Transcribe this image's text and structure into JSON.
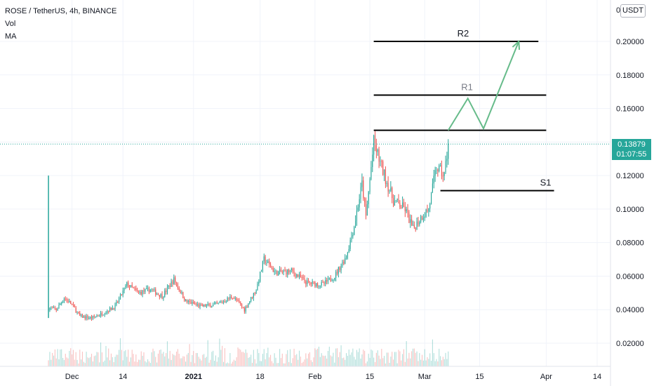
{
  "legend": {
    "symbol": "ROSE / TetherUS, 4h, BINANCE",
    "vol": "Vol",
    "ma": "MA"
  },
  "currency": "USDT",
  "last_price": "0.13879",
  "countdown": "01:07:55",
  "colors": {
    "up": "#26a69a",
    "down": "#ef5350",
    "price_line": "#26a69a",
    "projection": "#66bb8a",
    "levels": "#000000"
  },
  "chart_data": {
    "type": "candlestick",
    "x_ticks": [
      "Dec",
      "14",
      "2021",
      "18",
      "Feb",
      "15",
      "Mar",
      "15",
      "Apr",
      "14"
    ],
    "y_ticks": [
      "0",
      "0.20000",
      "0.18000",
      "0.16000",
      "0.14000",
      "0.12000",
      "0.10000",
      "0.08000",
      "0.06000",
      "0.04000",
      "0.02000"
    ],
    "ylim": [
      0.008,
      0.217
    ],
    "price_path": [
      [
        "2020-11-25",
        0.12
      ],
      [
        "2020-11-25",
        0.041
      ],
      [
        "2020-11-27",
        0.04
      ],
      [
        "2020-11-29",
        0.047
      ],
      [
        "2020-12-01",
        0.043
      ],
      [
        "2020-12-03",
        0.036
      ],
      [
        "2020-12-06",
        0.035
      ],
      [
        "2020-12-09",
        0.038
      ],
      [
        "2020-12-12",
        0.042
      ],
      [
        "2020-12-15",
        0.055
      ],
      [
        "2020-12-18",
        0.05
      ],
      [
        "2020-12-21",
        0.052
      ],
      [
        "2020-12-24",
        0.048
      ],
      [
        "2020-12-27",
        0.058
      ],
      [
        "2020-12-30",
        0.045
      ],
      [
        "2021-01-03",
        0.042
      ],
      [
        "2021-01-07",
        0.043
      ],
      [
        "2021-01-11",
        0.048
      ],
      [
        "2021-01-14",
        0.04
      ],
      [
        "2021-01-17",
        0.052
      ],
      [
        "2021-01-19",
        0.07
      ],
      [
        "2021-01-22",
        0.062
      ],
      [
        "2021-01-26",
        0.063
      ],
      [
        "2021-01-30",
        0.056
      ],
      [
        "2021-02-03",
        0.055
      ],
      [
        "2021-02-06",
        0.06
      ],
      [
        "2021-02-09",
        0.072
      ],
      [
        "2021-02-11",
        0.09
      ],
      [
        "2021-02-13",
        0.115
      ],
      [
        "2021-02-14",
        0.095
      ],
      [
        "2021-02-16",
        0.14
      ],
      [
        "2021-02-18",
        0.125
      ],
      [
        "2021-02-21",
        0.105
      ],
      [
        "2021-02-24",
        0.1
      ],
      [
        "2021-02-26",
        0.088
      ],
      [
        "2021-02-28",
        0.095
      ],
      [
        "2021-03-02",
        0.1
      ],
      [
        "2021-03-04",
        0.125
      ],
      [
        "2021-03-06",
        0.12
      ],
      [
        "2021-03-07",
        0.139
      ]
    ],
    "levels": [
      {
        "name": "R2",
        "value": 0.2,
        "from": "2021-02-16",
        "to": "2021-03-30"
      },
      {
        "name": "R1",
        "value": 0.168,
        "from": "2021-02-16",
        "to": "2021-04-01"
      },
      {
        "name": "",
        "value": 0.147,
        "from": "2021-02-16",
        "to": "2021-04-01"
      },
      {
        "name": "S1",
        "value": 0.111,
        "from": "2021-03-05",
        "to": "2021-04-03"
      }
    ],
    "projection": [
      [
        "2021-03-07",
        0.147
      ],
      [
        "2021-03-12",
        0.166
      ],
      [
        "2021-03-16",
        0.148
      ],
      [
        "2021-03-25",
        0.2
      ]
    ]
  }
}
